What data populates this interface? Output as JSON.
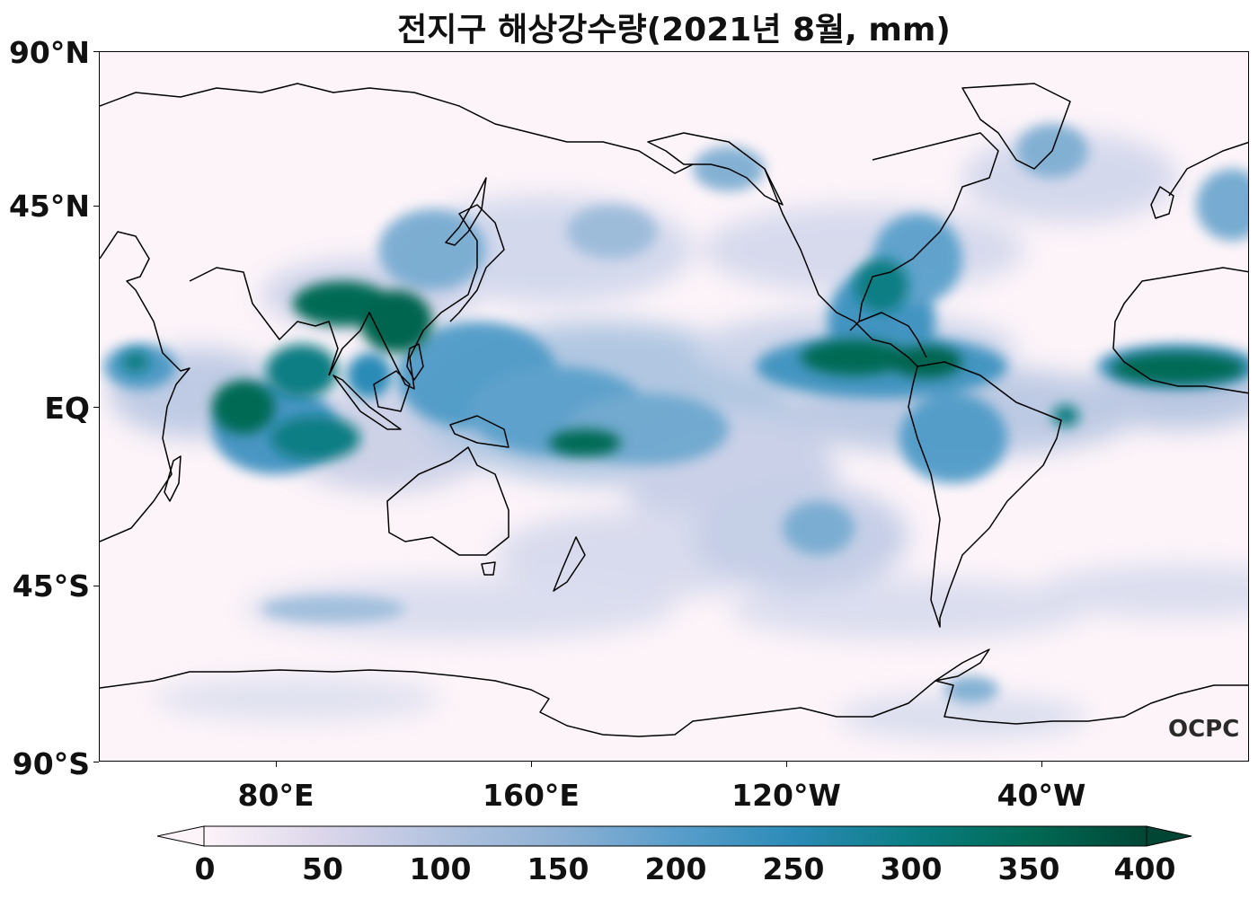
{
  "title": "전지구 해상강수량(2021년 8월, mm)",
  "watermark": "OCPC",
  "y_axis": {
    "labels": [
      "90°N",
      "45°N",
      "EQ",
      "45°S",
      "90°S"
    ]
  },
  "x_axis": {
    "labels": [
      "80°E",
      "160°E",
      "120°W",
      "40°W"
    ]
  },
  "colorbar": {
    "min": 0,
    "max": 400,
    "tick_labels": [
      "0",
      "50",
      "100",
      "150",
      "200",
      "250",
      "300",
      "350",
      "400"
    ],
    "extend": "both",
    "colors": [
      "#fdf4f9",
      "#dcd6ea",
      "#b3c3df",
      "#8fb1d4",
      "#5a9ecb",
      "#2c8bb7",
      "#0b7e84",
      "#016a55",
      "#014635"
    ]
  },
  "map": {
    "projection": "equirectangular",
    "central_longitude": "160°W",
    "coastline_color": "#000000",
    "ocean_background": "#fdf4f9"
  }
}
